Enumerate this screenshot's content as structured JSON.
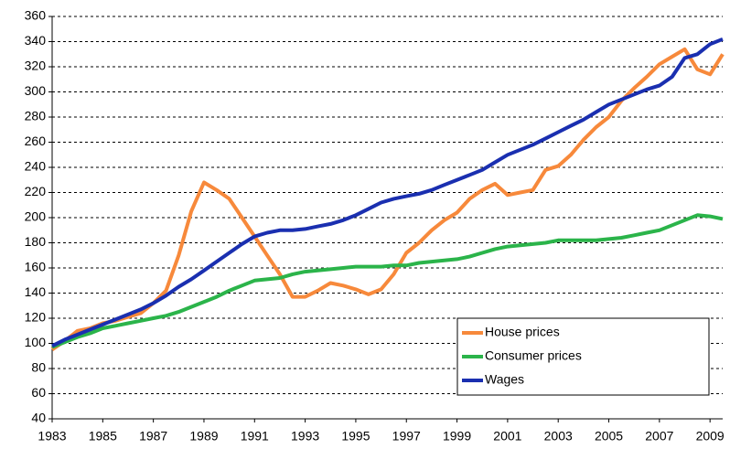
{
  "chart_data": {
    "type": "line",
    "x": [
      1983,
      1983.5,
      1984,
      1984.5,
      1985,
      1985.5,
      1986,
      1986.5,
      1987,
      1987.5,
      1988,
      1988.5,
      1989,
      1989.5,
      1990,
      1990.5,
      1991,
      1991.5,
      1992,
      1992.5,
      1993,
      1993.5,
      1994,
      1994.5,
      1995,
      1995.5,
      1996,
      1996.5,
      1997,
      1997.5,
      1998,
      1998.5,
      1999,
      1999.5,
      2000,
      2000.5,
      2001,
      2001.5,
      2002,
      2002.5,
      2003,
      2003.5,
      2004,
      2004.5,
      2005,
      2005.5,
      2006,
      2006.5,
      2007,
      2007.5,
      2008,
      2008.5,
      2009,
      2009.5
    ],
    "series": [
      {
        "name": "House prices",
        "color": "#f7893b",
        "values": [
          95,
          102,
          110,
          112,
          116,
          118,
          121,
          124,
          132,
          142,
          170,
          205,
          228,
          222,
          215,
          200,
          185,
          170,
          155,
          137,
          137,
          142,
          148,
          146,
          143,
          139,
          143,
          155,
          172,
          180,
          190,
          198,
          204,
          215,
          222,
          227,
          218,
          220,
          222,
          238,
          241,
          250,
          262,
          272,
          280,
          293,
          303,
          312,
          322,
          328,
          334,
          318,
          314,
          330
        ]
      },
      {
        "name": "Consumer prices",
        "color": "#2bb44a",
        "values": [
          97,
          101,
          105,
          108,
          112,
          114,
          116,
          118,
          120,
          122,
          125,
          129,
          133,
          137,
          142,
          146,
          150,
          151,
          152,
          155,
          157,
          158,
          159,
          160,
          161,
          161,
          161,
          162,
          162,
          164,
          165,
          166,
          167,
          169,
          172,
          175,
          177,
          178,
          179,
          180,
          182,
          182,
          182,
          182,
          183,
          184,
          186,
          188,
          190,
          194,
          198,
          202,
          201,
          199
        ]
      },
      {
        "name": "Wages",
        "color": "#1a2fb0",
        "values": [
          98,
          103,
          107,
          111,
          115,
          119,
          123,
          127,
          132,
          138,
          145,
          151,
          158,
          165,
          172,
          179,
          185,
          188,
          190,
          190,
          191,
          193,
          195,
          198,
          202,
          207,
          212,
          215,
          217,
          219,
          222,
          226,
          230,
          234,
          238,
          244,
          250,
          254,
          258,
          263,
          268,
          273,
          278,
          284,
          290,
          294,
          298,
          302,
          305,
          312,
          327,
          330,
          338,
          342
        ]
      }
    ],
    "xlim": [
      1983,
      2009.5
    ],
    "xticks": [
      1983,
      1985,
      1987,
      1989,
      1991,
      1993,
      1995,
      1997,
      1999,
      2001,
      2003,
      2005,
      2007,
      2009
    ],
    "ylim": [
      40,
      360
    ],
    "yticks": [
      40,
      60,
      80,
      100,
      120,
      140,
      160,
      180,
      200,
      220,
      240,
      260,
      280,
      300,
      320,
      340,
      360
    ],
    "grid": true,
    "legend": "lower right"
  }
}
